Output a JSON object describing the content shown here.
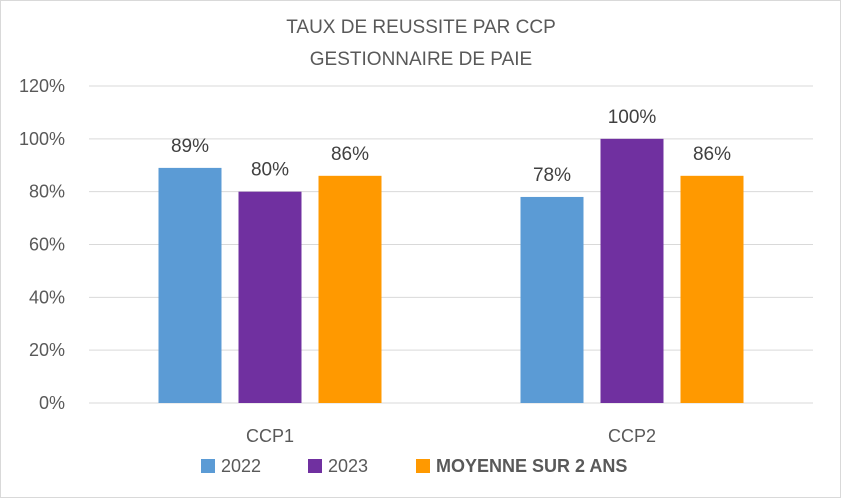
{
  "chart_data": {
    "type": "bar",
    "title_lines": [
      "TAUX DE REUSSITE PAR CCP",
      "GESTIONNAIRE DE PAIE"
    ],
    "categories": [
      "CCP1",
      "CCP2"
    ],
    "series": [
      {
        "name": "2022",
        "values": [
          89,
          78
        ],
        "color": "#5b9bd5"
      },
      {
        "name": "2023",
        "values": [
          80,
          100
        ],
        "color": "#7030a0"
      },
      {
        "name": "MOYENNE SUR 2 ANS",
        "values": [
          86,
          86
        ],
        "color": "#ff9900",
        "legend_text_color": "#ff0000",
        "legend_bold": true
      }
    ],
    "data_labels": [
      [
        "89%",
        "78%"
      ],
      [
        "80%",
        "100%"
      ],
      [
        "86%",
        "86%"
      ]
    ],
    "y_ticks": [
      0,
      20,
      40,
      60,
      80,
      100,
      120
    ],
    "y_tick_labels": [
      "0%",
      "20%",
      "40%",
      "60%",
      "80%",
      "100%",
      "120%"
    ],
    "ylim": [
      0,
      120
    ],
    "grid": true,
    "gridline_color": "#d9d9d9",
    "legend_position": "bottom"
  }
}
